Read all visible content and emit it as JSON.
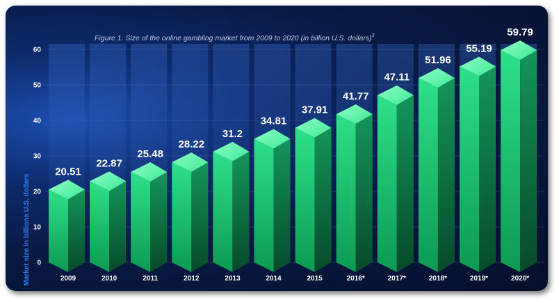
{
  "chart_data": {
    "type": "bar",
    "title": "Figure 1. Size of the online gambling market from 2009 to 2020 (in billion U.S. dollars)",
    "title_sup": "3",
    "xlabel": "",
    "ylabel": "Market size in billions U.S. dollars",
    "ylim": [
      0,
      60
    ],
    "yticks": [
      0,
      10,
      20,
      30,
      40,
      50,
      60
    ],
    "grid": true,
    "categories": [
      "2009",
      "2010",
      "2011",
      "2012",
      "2013",
      "2014",
      "2015",
      "2016*",
      "2017*",
      "2018*",
      "2019*",
      "2020*"
    ],
    "values": [
      20.51,
      22.87,
      25.48,
      28.22,
      31.2,
      34.81,
      37.91,
      41.77,
      47.11,
      51.96,
      55.19,
      59.79
    ],
    "value_labels": [
      "20.51",
      "22.87",
      "25.48",
      "28.22",
      "31.2",
      "34.81",
      "37.91",
      "41.77",
      "47.11",
      "51.96",
      "55.19",
      "59.79"
    ],
    "colors": {
      "bar_front": "#1fcf76",
      "bar_side": "#0f7a45",
      "bar_top": "#6dffb2",
      "background": "#081a44",
      "ylabel": "#2f7df0"
    }
  }
}
